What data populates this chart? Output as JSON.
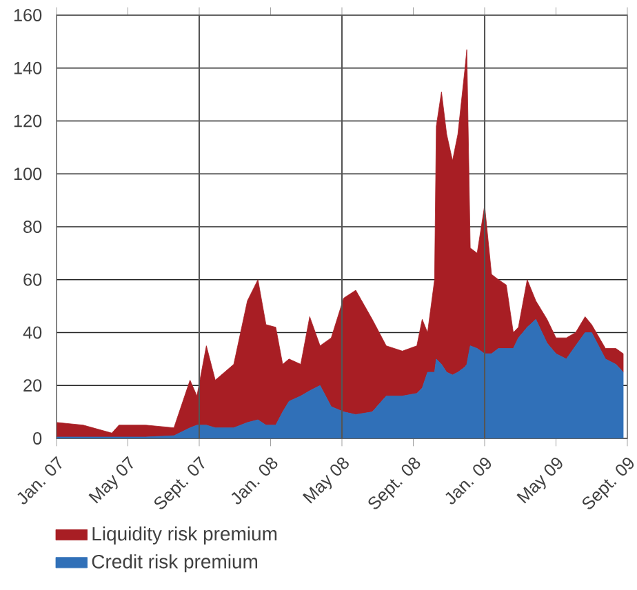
{
  "chart_data": {
    "type": "area",
    "stacked": true,
    "x": [
      "2007-01-02",
      "2007-02-15",
      "2007-04-04",
      "2007-04-16",
      "2007-06-01",
      "2007-07-19",
      "2007-08-16",
      "2007-08-28",
      "2007-09-13",
      "2007-09-28",
      "2007-10-30",
      "2007-11-22",
      "2007-12-10",
      "2007-12-24",
      "2008-01-10",
      "2008-01-22",
      "2008-02-02",
      "2008-02-21",
      "2008-03-07",
      "2008-03-25",
      "2008-04-13",
      "2008-05-04",
      "2008-05-25",
      "2008-06-22",
      "2008-07-16",
      "2008-08-13",
      "2008-09-07",
      "2008-09-16",
      "2008-09-25",
      "2008-10-07",
      "2008-10-10",
      "2008-10-19",
      "2008-10-28",
      "2008-11-07",
      "2008-11-16",
      "2008-11-28",
      "2008-12-01",
      "2008-12-07",
      "2008-12-19",
      "2009-01-01",
      "2009-01-13",
      "2009-01-25",
      "2009-02-07",
      "2009-02-18",
      "2009-02-26",
      "2009-03-13",
      "2009-03-28",
      "2009-04-16",
      "2009-05-01",
      "2009-05-19",
      "2009-06-04",
      "2009-06-20",
      "2009-07-01",
      "2009-07-25",
      "2009-08-12",
      "2009-08-25"
    ],
    "series": [
      {
        "name": "Credit risk premium",
        "color": "#3070b8",
        "values": [
          0.5,
          0.5,
          0.5,
          0.5,
          0.5,
          1,
          4,
          5,
          5,
          4,
          4,
          6,
          7,
          5,
          5,
          10,
          14,
          16,
          18,
          20,
          12,
          10,
          9,
          10,
          16,
          16,
          17,
          19,
          25,
          25,
          30,
          28,
          25,
          24,
          25,
          27,
          28,
          35,
          34,
          32,
          32,
          34,
          34,
          34,
          38,
          42,
          45,
          36,
          32,
          30,
          35,
          40,
          40,
          30,
          28,
          25
        ]
      },
      {
        "name": "Liquidity risk premium",
        "color": "#a81e24",
        "values": [
          5.5,
          4.5,
          1.5,
          4.5,
          4.5,
          3,
          18,
          11,
          30,
          18,
          24,
          46,
          53,
          38,
          37,
          18,
          16,
          12,
          28,
          15,
          26,
          43,
          47,
          35,
          19,
          17,
          18,
          26,
          15,
          35,
          88,
          103,
          90,
          81,
          90,
          113,
          119,
          37,
          36,
          56,
          30,
          26,
          24,
          6,
          4,
          18,
          7,
          9,
          6,
          8,
          5,
          6,
          3,
          4,
          6,
          7
        ]
      }
    ],
    "xlim": [
      "2007-01",
      "2009-09"
    ],
    "xticks": [
      {
        "value": "2007-01",
        "label": "Jan. 07"
      },
      {
        "value": "2007-05",
        "label": "May 07"
      },
      {
        "value": "2007-09",
        "label": "Sept. 07"
      },
      {
        "value": "2008-01",
        "label": "Jan. 08"
      },
      {
        "value": "2008-05",
        "label": "May 08"
      },
      {
        "value": "2008-09",
        "label": "Sept. 08"
      },
      {
        "value": "2009-01",
        "label": "Jan. 09"
      },
      {
        "value": "2009-05",
        "label": "May 09"
      },
      {
        "value": "2009-09",
        "label": "Sept. 09"
      }
    ],
    "ylim": [
      0,
      160
    ],
    "yticks": [
      0,
      20,
      40,
      60,
      80,
      100,
      120,
      140,
      160
    ],
    "grid": "y",
    "ref_lines": [
      {
        "axis": "x",
        "value": "2007-09",
        "color": "#555555"
      },
      {
        "axis": "x",
        "value": "2008-05",
        "color": "#555555"
      },
      {
        "axis": "x",
        "value": "2009-01",
        "color": "#555555"
      }
    ],
    "legend": "bottom"
  }
}
